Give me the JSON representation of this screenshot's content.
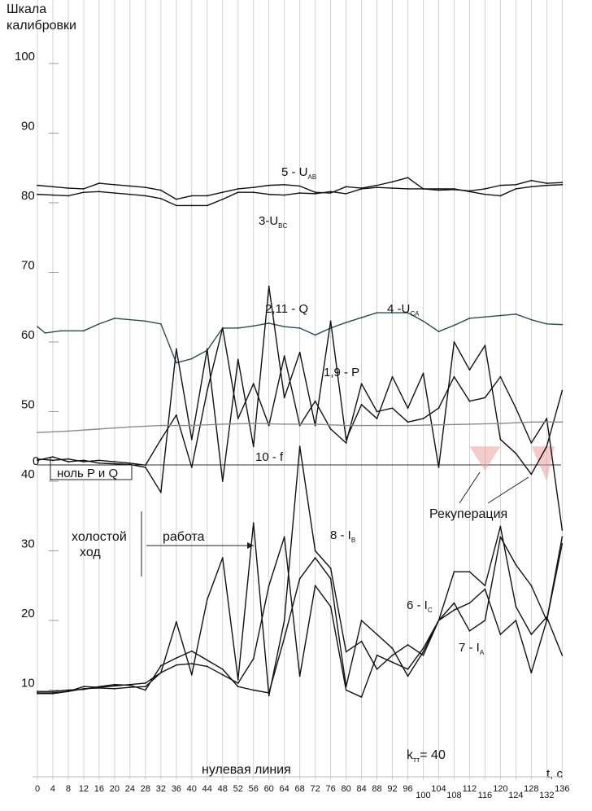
{
  "chart_data": {
    "type": "line",
    "ylabel": "Шкала калибровки",
    "yticks": [
      100,
      90,
      80,
      70,
      60,
      50,
      40,
      30,
      20,
      10
    ],
    "y_zero_label": "0",
    "x_unit_label": "t,  с",
    "x": [
      0,
      4,
      8,
      12,
      16,
      20,
      24,
      28,
      32,
      36,
      40,
      44,
      48,
      52,
      56,
      60,
      64,
      68,
      72,
      76,
      80,
      84,
      88,
      92,
      96,
      100,
      104,
      108,
      112,
      116,
      120,
      124,
      128,
      132,
      136
    ],
    "grid": true,
    "series": [
      {
        "name": "5 - U",
        "sub": "AB",
        "color": "#111111",
        "x": [
          0,
          4,
          8,
          12,
          16,
          20,
          24,
          28,
          32,
          36,
          40,
          44,
          48,
          52,
          56,
          60,
          64,
          68,
          72,
          76,
          80,
          84,
          88,
          92,
          96,
          100,
          104,
          108,
          112,
          116,
          120,
          124,
          128,
          132,
          136
        ],
        "values": [
          82.5,
          82.3,
          82.1,
          82.0,
          82.8,
          82.6,
          82.4,
          82.2,
          81.8,
          80.5,
          81.0,
          81.0,
          81.5,
          82.0,
          82.2,
          82.5,
          82.6,
          82.4,
          81.5,
          81.4,
          82.3,
          82.1,
          82.5,
          83.0,
          83.6,
          82.0,
          81.8,
          81.9,
          81.7,
          82.0,
          82.5,
          82.6,
          83.2,
          82.8,
          82.9
        ]
      },
      {
        "name": "3-U",
        "sub": "BC",
        "color": "#111111",
        "x": [
          0,
          4,
          8,
          12,
          16,
          20,
          24,
          28,
          32,
          36,
          40,
          44,
          48,
          52,
          56,
          60,
          64,
          68,
          72,
          76,
          80,
          84,
          88,
          92,
          96,
          100,
          104,
          108,
          112,
          116,
          120,
          124,
          128,
          132,
          136
        ],
        "values": [
          81.2,
          81.1,
          81.0,
          81.5,
          81.6,
          81.4,
          81.2,
          81.0,
          80.6,
          79.6,
          79.6,
          79.6,
          80.5,
          81.5,
          81.5,
          81.2,
          81.1,
          81.4,
          81.3,
          81.6,
          81.3,
          82.0,
          82.2,
          82.1,
          82.0,
          82.0,
          82.0,
          82.0,
          81.6,
          81.2,
          81.0,
          82.0,
          82.3,
          82.5,
          82.6
        ]
      },
      {
        "name": "4 -U",
        "sub": "CA",
        "color": "#2b4a52",
        "x": [
          0,
          2,
          6,
          12,
          16,
          20,
          28,
          32,
          36,
          40,
          44,
          48,
          52,
          56,
          60,
          64,
          68,
          72,
          76,
          80,
          84,
          88,
          92,
          96,
          100,
          104,
          108,
          112,
          116,
          120,
          124,
          128,
          132,
          136
        ],
        "values": [
          62.2,
          61.3,
          61.6,
          61.6,
          62.6,
          63.4,
          63.0,
          62.6,
          57.0,
          57.6,
          58.8,
          62.0,
          62.0,
          62.3,
          62.7,
          62.2,
          62.0,
          61.0,
          62.0,
          62.8,
          63.5,
          64.2,
          64.2,
          64.2,
          63.0,
          61.5,
          62.4,
          63.4,
          63.6,
          63.8,
          64.0,
          63.2,
          62.6,
          62.5
        ]
      },
      {
        "name": "2,11 - Q",
        "color": "#111111",
        "x": [
          0,
          4,
          8,
          12,
          16,
          20,
          24,
          28,
          32,
          36,
          40,
          44,
          48,
          52,
          56,
          60,
          64,
          68,
          72,
          76,
          80,
          84,
          88,
          92,
          96,
          100,
          104,
          108,
          112,
          116,
          120,
          124,
          128,
          132,
          136
        ],
        "values": [
          43.0,
          43.5,
          42.8,
          43.0,
          42.6,
          42.5,
          42.4,
          42.0,
          38.4,
          59.0,
          46.0,
          59.0,
          40.0,
          57.5,
          45.0,
          68.0,
          52.0,
          58.5,
          48.0,
          63.0,
          46.0,
          51.0,
          49.0,
          55.0,
          50.5,
          55.5,
          42.0,
          60.0,
          56.0,
          59.5,
          46.0,
          44.0,
          41.0,
          45.0,
          53.0
        ]
      },
      {
        "name": "1,9 - P",
        "color": "#111111",
        "x": [
          0,
          4,
          8,
          12,
          16,
          20,
          24,
          28,
          32,
          36,
          40,
          44,
          48,
          52,
          56,
          60,
          64,
          68,
          72,
          76,
          80,
          84,
          88,
          92,
          96,
          100,
          104,
          108,
          112,
          116,
          120,
          124,
          128,
          132,
          136
        ],
        "values": [
          43.2,
          43.0,
          43.2,
          42.8,
          43.0,
          42.8,
          42.6,
          42.3,
          46.0,
          49.5,
          42.0,
          53.0,
          62.0,
          49.0,
          54.0,
          48.0,
          58.0,
          48.0,
          51.5,
          47.5,
          45.5,
          54.0,
          50.0,
          50.5,
          48.5,
          49.0,
          50.5,
          55.0,
          51.5,
          52.0,
          55.0,
          50.5,
          45.5,
          49.0,
          33.0
        ]
      },
      {
        "name": "10 - f",
        "color": "#8a8a8a",
        "x": [
          0,
          8,
          16,
          24,
          32,
          40,
          48,
          56,
          64,
          72,
          80,
          88,
          96,
          104,
          112,
          120,
          128,
          136
        ],
        "values": [
          47.0,
          47.2,
          47.5,
          47.8,
          48.0,
          48.0,
          48.2,
          48.3,
          48.2,
          48.2,
          48.0,
          48.0,
          48.0,
          48.1,
          48.2,
          48.3,
          48.5,
          48.5
        ]
      },
      {
        "name": "8 - I",
        "sub": "B",
        "color": "#111111",
        "x": [
          0,
          4,
          8,
          12,
          16,
          20,
          24,
          28,
          32,
          36,
          40,
          44,
          48,
          52,
          56,
          60,
          64,
          68,
          72,
          76,
          80,
          84,
          88,
          92,
          96,
          100,
          104,
          108,
          112,
          116,
          120,
          124,
          128,
          132,
          136
        ],
        "values": [
          9.6,
          9.6,
          9.8,
          10.2,
          10.3,
          10.2,
          10.4,
          10.5,
          12.5,
          19.8,
          12.2,
          23.0,
          29.0,
          11.5,
          34.0,
          9.2,
          20.0,
          45.0,
          30.0,
          27.5,
          15.5,
          17.0,
          13.0,
          15.0,
          16.5,
          15.0,
          20.0,
          22.5,
          18.5,
          20.0,
          32.0,
          28.0,
          25.0,
          20.0,
          31.0
        ]
      },
      {
        "name": "6 - I",
        "sub": "C",
        "color": "#111111",
        "x": [
          0,
          4,
          8,
          12,
          16,
          20,
          24,
          28,
          32,
          36,
          40,
          44,
          48,
          52,
          56,
          60,
          64,
          68,
          72,
          76,
          80,
          84,
          88,
          92,
          96,
          100,
          104,
          108,
          112,
          116,
          120,
          124,
          128,
          132,
          136
        ],
        "values": [
          9.8,
          9.8,
          10.0,
          10.1,
          10.5,
          10.8,
          10.7,
          10.0,
          13.5,
          14.6,
          15.6,
          14.3,
          13.0,
          10.5,
          10.0,
          9.6,
          17.5,
          26.0,
          29.0,
          26.0,
          10.5,
          20.0,
          18.0,
          16.0,
          12.0,
          15.5,
          20.0,
          27.0,
          27.0,
          25.0,
          33.5,
          22.0,
          18.0,
          20.5,
          15.0
        ]
      },
      {
        "name": "7 - I",
        "sub": "A",
        "color": "#111111",
        "x": [
          0,
          4,
          8,
          12,
          16,
          20,
          24,
          28,
          32,
          36,
          40,
          44,
          48,
          52,
          56,
          60,
          64,
          68,
          72,
          76,
          80,
          84,
          88,
          92,
          96,
          100,
          104,
          108,
          112,
          116,
          120,
          124,
          128,
          132,
          136
        ],
        "values": [
          9.5,
          9.5,
          9.8,
          10.5,
          10.4,
          10.6,
          10.8,
          11.0,
          12.5,
          13.6,
          13.8,
          13.4,
          12.2,
          11.0,
          14.5,
          25.0,
          32.0,
          12.0,
          25.0,
          22.0,
          10.0,
          9.0,
          15.0,
          14.0,
          13.0,
          16.0,
          20.0,
          21.5,
          22.5,
          24.5,
          18.0,
          20.0,
          12.5,
          20.0,
          32.0
        ]
      }
    ],
    "annotations": {
      "zero_pq": "ноль P и Q",
      "idle": "холостой",
      "idle2": "ход",
      "work": "работа",
      "recuperation": "Рекуперация",
      "k_label": "k",
      "k_sub": "тт",
      "k_value": "= 40",
      "baseline": "нулевая линия"
    }
  }
}
